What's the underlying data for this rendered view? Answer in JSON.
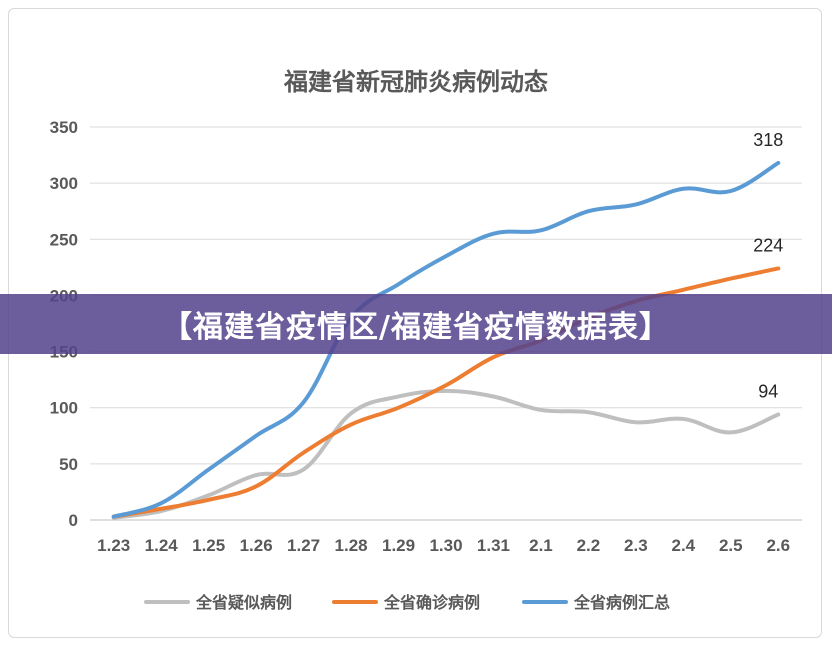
{
  "chart_data": {
    "type": "line",
    "title": "福建省新冠肺炎病例动态",
    "xlabel": "",
    "ylabel": "",
    "ylim": [
      0,
      350
    ],
    "yticks": [
      0,
      50,
      100,
      150,
      200,
      250,
      300,
      350
    ],
    "grid": true,
    "legend": "bottom",
    "categories": [
      "1.23",
      "1.24",
      "1.25",
      "1.26",
      "1.27",
      "1.28",
      "1.29",
      "1.30",
      "1.31",
      "2.1",
      "2.2",
      "2.3",
      "2.4",
      "2.5",
      "2.6"
    ],
    "series": [
      {
        "name": "全省疑似病例",
        "color": "#bfbfbf",
        "values": [
          2,
          8,
          22,
          40,
          45,
          95,
          110,
          115,
          110,
          98,
          96,
          87,
          90,
          78,
          94
        ],
        "end_label": "94"
      },
      {
        "name": "全省确诊病例",
        "color": "#ed7d31",
        "values": [
          3,
          10,
          18,
          30,
          60,
          85,
          100,
          120,
          145,
          160,
          180,
          195,
          205,
          215,
          224
        ],
        "end_label": "224"
      },
      {
        "name": "全省病例汇总",
        "color": "#5b9bd5",
        "values": [
          3,
          15,
          45,
          75,
          105,
          180,
          210,
          235,
          255,
          258,
          275,
          281,
          295,
          293,
          318
        ],
        "end_label": "318"
      }
    ]
  },
  "banner": {
    "text": "【福建省疫情区/福建省疫情数据表】"
  }
}
